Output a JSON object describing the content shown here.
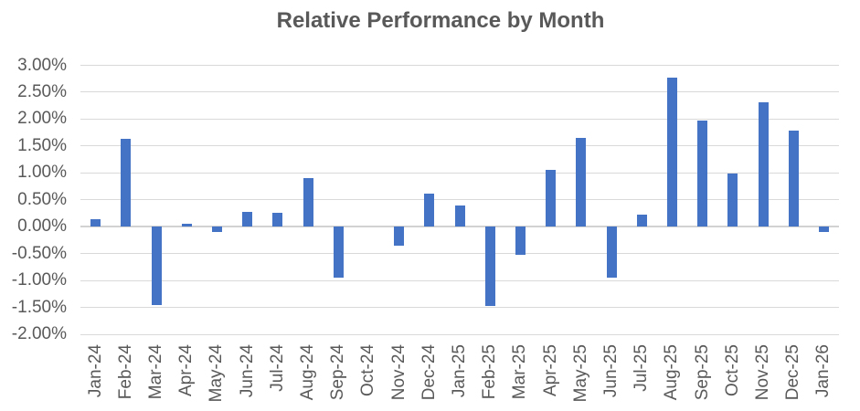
{
  "colors": {
    "bar": "#4472C4",
    "gridline": "#D9D9D9",
    "zero_line": "#D2D2D2",
    "title_text": "#595959",
    "tick_text": "#595959",
    "background": "#FFFFFF"
  },
  "chart_data": {
    "type": "bar",
    "title": "Relative Performance by Month",
    "xlabel": "",
    "ylabel": "",
    "legend": false,
    "grid": true,
    "ylim": [
      -2.0,
      3.0
    ],
    "y_tick_step": 0.5,
    "y_ticks": [
      "3.00%",
      "2.50%",
      "2.00%",
      "1.50%",
      "1.00%",
      "0.50%",
      "0.00%",
      "-0.50%",
      "-1.00%",
      "-1.50%",
      "-2.00%"
    ],
    "categories": [
      "Jan-24",
      "Feb-24",
      "Mar-24",
      "Apr-24",
      "May-24",
      "Jun-24",
      "Jul-24",
      "Aug-24",
      "Sep-24",
      "Oct-24",
      "Nov-24",
      "Dec-24",
      "Jan-25",
      "Feb-25",
      "Mar-25",
      "Apr-25",
      "May-25",
      "Jun-25",
      "Jul-25",
      "Aug-25",
      "Sep-25",
      "Oct-25",
      "Nov-25",
      "Dec-25",
      "Jan-26"
    ],
    "values": [
      0.14,
      1.64,
      -1.46,
      0.06,
      -0.1,
      0.28,
      0.26,
      0.9,
      -0.95,
      0.0,
      -0.36,
      0.61,
      0.39,
      -1.47,
      -0.52,
      1.06,
      1.65,
      -0.94,
      0.23,
      2.77,
      1.98,
      0.99,
      2.32,
      1.79,
      -0.1
    ],
    "values_unit": "percent"
  }
}
